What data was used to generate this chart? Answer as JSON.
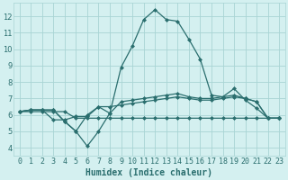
{
  "xlabel": "Humidex (Indice chaleur)",
  "x": [
    0,
    1,
    2,
    3,
    4,
    5,
    6,
    7,
    8,
    9,
    10,
    11,
    12,
    13,
    14,
    15,
    16,
    17,
    18,
    19,
    20,
    21,
    22,
    23
  ],
  "line1": [
    6.2,
    6.3,
    6.3,
    6.3,
    5.6,
    5.0,
    6.0,
    6.5,
    6.1,
    8.9,
    10.2,
    11.8,
    12.4,
    11.8,
    11.7,
    10.6,
    9.4,
    7.2,
    7.1,
    7.6,
    6.9,
    6.4,
    5.8,
    5.8
  ],
  "line2": [
    6.2,
    6.3,
    6.3,
    6.3,
    5.6,
    5.0,
    4.1,
    5.0,
    6.1,
    6.8,
    6.9,
    7.0,
    7.1,
    7.2,
    7.3,
    7.1,
    7.0,
    7.0,
    7.1,
    7.2,
    7.0,
    6.8,
    5.8,
    5.8
  ],
  "line3": [
    6.2,
    6.3,
    6.3,
    5.7,
    5.7,
    5.9,
    5.9,
    6.5,
    6.5,
    6.6,
    6.7,
    6.8,
    6.9,
    7.0,
    7.1,
    7.0,
    6.9,
    6.9,
    7.0,
    7.1,
    7.0,
    6.8,
    5.8,
    5.8
  ],
  "line4": [
    6.2,
    6.2,
    6.2,
    6.2,
    6.2,
    5.8,
    5.8,
    5.8,
    5.8,
    5.8,
    5.8,
    5.8,
    5.8,
    5.8,
    5.8,
    5.8,
    5.8,
    5.8,
    5.8,
    5.8,
    5.8,
    5.8,
    5.8,
    5.8
  ],
  "line_color": "#2a6e6e",
  "bg_color": "#d4f0f0",
  "grid_color": "#a8d4d4",
  "ylim": [
    3.5,
    12.8
  ],
  "yticks": [
    4,
    5,
    6,
    7,
    8,
    9,
    10,
    11,
    12
  ],
  "xlim": [
    -0.5,
    23.5
  ],
  "marker": "D",
  "markersize": 2.0,
  "linewidth": 0.9,
  "tick_fontsize": 6.0,
  "xlabel_fontsize": 7.0
}
